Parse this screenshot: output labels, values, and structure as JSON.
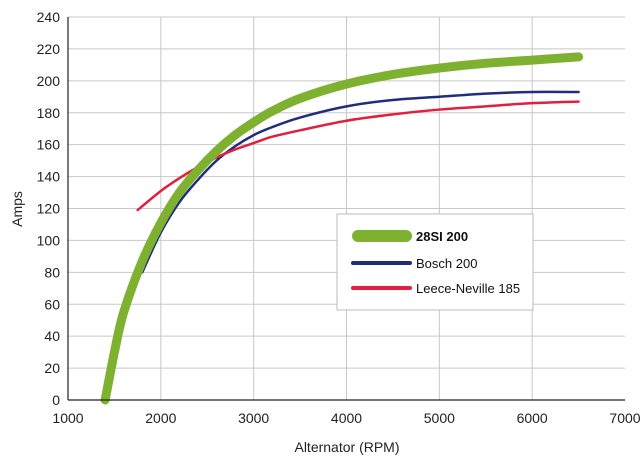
{
  "chart_data": {
    "type": "line",
    "xlabel": "Alternator (RPM)",
    "ylabel": "Amps",
    "xlim": [
      1000,
      7000
    ],
    "ylim": [
      0,
      240
    ],
    "xticks": [
      1000,
      2000,
      3000,
      4000,
      5000,
      6000,
      7000
    ],
    "yticks": [
      0,
      20,
      40,
      60,
      80,
      100,
      120,
      140,
      160,
      180,
      200,
      220,
      240
    ],
    "grid": true,
    "legend_position": "center-right",
    "series": [
      {
        "name": "28SI 200",
        "color": "#7fb131",
        "bold": true,
        "x": [
          1400,
          1500,
          1600,
          1800,
          2000,
          2200,
          2400,
          2600,
          2800,
          3000,
          3200,
          3500,
          4000,
          4500,
          5000,
          5500,
          6000,
          6500
        ],
        "y": [
          0,
          30,
          55,
          87,
          111,
          130,
          144,
          156,
          166,
          174,
          181,
          189,
          198,
          204,
          208,
          211,
          213,
          215
        ]
      },
      {
        "name": "Bosch 200",
        "color": "#1f2d7a",
        "bold": false,
        "x": [
          1800,
          2000,
          2200,
          2400,
          2600,
          2800,
          3000,
          3200,
          3500,
          4000,
          4500,
          5000,
          5500,
          6000,
          6500
        ],
        "y": [
          80,
          105,
          124,
          138,
          150,
          159,
          166,
          171,
          177,
          184,
          188,
          190,
          192,
          193,
          193
        ]
      },
      {
        "name": "Leece-Neville 185",
        "color": "#e11f3e",
        "bold": false,
        "x": [
          1750,
          2000,
          2200,
          2400,
          2600,
          2800,
          3000,
          3200,
          3500,
          4000,
          4500,
          5000,
          5500,
          6000,
          6500
        ],
        "y": [
          119,
          131,
          139,
          146,
          152,
          157,
          161,
          165,
          169,
          175,
          179,
          182,
          184,
          186,
          187
        ]
      }
    ]
  }
}
